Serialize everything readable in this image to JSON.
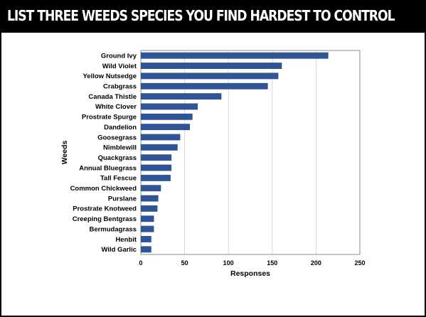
{
  "header": {
    "title": "LIST THREE WEEDS SPECIES YOU FIND HARDEST TO CONTROL"
  },
  "colors": {
    "bar": "#2f5597",
    "header_bg": "#000000",
    "header_text": "#ffffff"
  },
  "chart_data": {
    "type": "bar",
    "orientation": "horizontal",
    "title": "",
    "xlabel": "Responses",
    "ylabel": "Weeds",
    "xlim": [
      0,
      250
    ],
    "xticks": [
      0,
      50,
      100,
      150,
      200,
      250
    ],
    "grid": "vertical",
    "legend": "none",
    "categories": [
      "Ground Ivy",
      "Wild Violet",
      "Yellow Nutsedge",
      "Crabgrass",
      "Canada Thistle",
      "White Clover",
      "Prostrate Spurge",
      "Dandelion",
      "Goosegrass",
      "Nimblewill",
      "Quackgrass",
      "Annual Bluegrass",
      "Tall Fescue",
      "Common Chickweed",
      "Purslane",
      "Prostrate Knotweed",
      "Creeping Bentgrass",
      "Bermudagrass",
      "Henbit",
      "Wild Garlic"
    ],
    "values": [
      214,
      161,
      157,
      145,
      92,
      65,
      59,
      56,
      45,
      42,
      35,
      35,
      34,
      23,
      20,
      19,
      15,
      15,
      12,
      12
    ]
  }
}
